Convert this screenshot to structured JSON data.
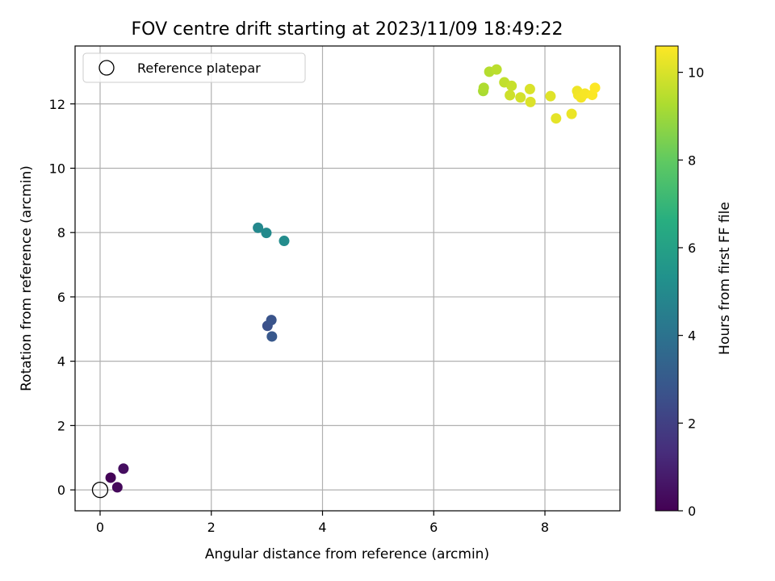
{
  "chart_data": {
    "type": "scatter",
    "title": "FOV centre drift starting at 2023/11/09 18:49:22",
    "xlabel": "Angular distance from reference (arcmin)",
    "ylabel": "Rotation from reference (arcmin)",
    "xlim": [
      -0.45,
      9.35
    ],
    "ylim": [
      -0.65,
      13.8
    ],
    "xticks": [
      0,
      2,
      4,
      6,
      8
    ],
    "yticks": [
      0,
      2,
      4,
      6,
      8,
      10,
      12
    ],
    "grid": true,
    "legend": {
      "placement": "top-left",
      "entries": [
        "Reference platepar"
      ]
    },
    "reference": {
      "label": "Reference platepar",
      "x": 0,
      "y": 0
    },
    "colorbar": {
      "label": "Hours from first FF file",
      "colormap": "viridis",
      "range": [
        0,
        10.6
      ],
      "ticks": [
        0,
        2,
        4,
        6,
        8,
        10
      ]
    },
    "points": [
      {
        "x": 0.19,
        "y": 0.38,
        "hours": 0.1
      },
      {
        "x": 0.31,
        "y": 0.08,
        "hours": 0.25
      },
      {
        "x": 0.42,
        "y": 0.66,
        "hours": 0.4
      },
      {
        "x": 3.01,
        "y": 5.1,
        "hours": 2.6
      },
      {
        "x": 3.08,
        "y": 5.28,
        "hours": 2.75
      },
      {
        "x": 3.09,
        "y": 4.77,
        "hours": 2.9
      },
      {
        "x": 2.84,
        "y": 8.15,
        "hours": 4.9
      },
      {
        "x": 2.99,
        "y": 7.99,
        "hours": 5.0
      },
      {
        "x": 3.31,
        "y": 7.74,
        "hours": 5.1
      },
      {
        "x": 6.89,
        "y": 12.4,
        "hours": 9.2
      },
      {
        "x": 6.9,
        "y": 12.5,
        "hours": 9.3
      },
      {
        "x": 7.0,
        "y": 13.0,
        "hours": 9.4
      },
      {
        "x": 7.13,
        "y": 13.07,
        "hours": 9.5
      },
      {
        "x": 7.27,
        "y": 12.67,
        "hours": 9.6
      },
      {
        "x": 7.4,
        "y": 12.56,
        "hours": 9.7
      },
      {
        "x": 7.37,
        "y": 12.27,
        "hours": 9.8
      },
      {
        "x": 7.56,
        "y": 12.2,
        "hours": 9.9
      },
      {
        "x": 7.73,
        "y": 12.46,
        "hours": 10.0
      },
      {
        "x": 7.74,
        "y": 12.06,
        "hours": 10.05
      },
      {
        "x": 8.1,
        "y": 12.24,
        "hours": 10.1
      },
      {
        "x": 8.2,
        "y": 11.55,
        "hours": 10.2
      },
      {
        "x": 8.48,
        "y": 11.69,
        "hours": 10.3
      },
      {
        "x": 8.58,
        "y": 12.4,
        "hours": 10.35
      },
      {
        "x": 8.6,
        "y": 12.28,
        "hours": 10.4
      },
      {
        "x": 8.65,
        "y": 12.2,
        "hours": 10.45
      },
      {
        "x": 8.72,
        "y": 12.32,
        "hours": 10.5
      },
      {
        "x": 8.85,
        "y": 12.28,
        "hours": 10.55
      },
      {
        "x": 8.9,
        "y": 12.5,
        "hours": 10.6
      }
    ]
  }
}
